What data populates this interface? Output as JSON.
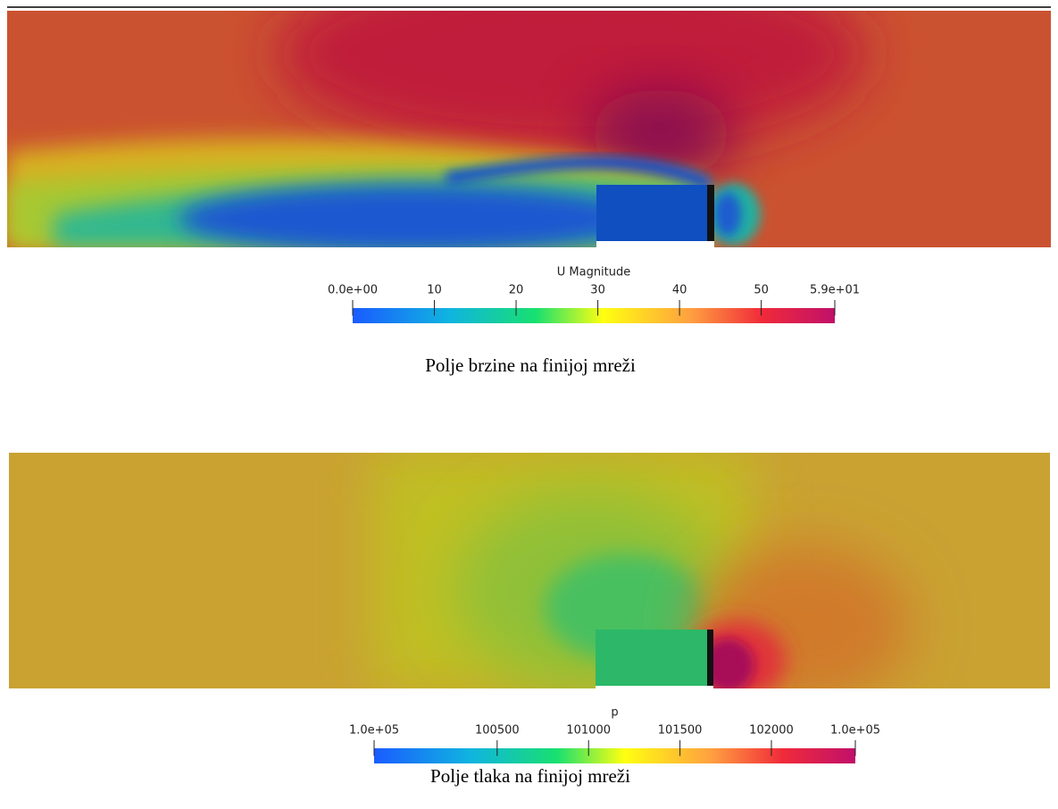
{
  "figures": [
    {
      "colorbar": {
        "title": "U Magnitude",
        "range": [
          0,
          59
        ],
        "ticks": [
          {
            "value": 0,
            "label": "0.0e+00"
          },
          10,
          20,
          30,
          40,
          50,
          {
            "value": 59,
            "label": "5.9e+01"
          }
        ]
      },
      "caption": "Polje brzine na finijoj mreži"
    },
    {
      "colorbar": {
        "title": "p",
        "range": [
          99827,
          102459
        ],
        "ticks": [
          {
            "value": 99827,
            "label": "1.0e+05"
          },
          100500,
          101000,
          101500,
          102000,
          {
            "value": 102459,
            "label": "1.0e+05"
          }
        ]
      },
      "caption": "Polje tlaka na finijoj mreži"
    }
  ]
}
